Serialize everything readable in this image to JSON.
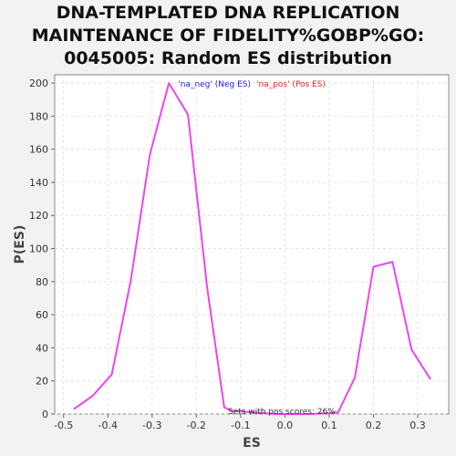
{
  "chart_data": {
    "type": "line",
    "title_lines": [
      "DNA-TEMPLATED DNA REPLICATION",
      "MAINTENANCE OF FIDELITY%GOBP%GO:",
      "0045005: Random ES distribution"
    ],
    "xlabel": "ES",
    "ylabel": "P(ES)",
    "xlim": [
      -0.52,
      0.37
    ],
    "ylim": [
      0,
      205
    ],
    "x_ticks": [
      -0.5,
      -0.4,
      -0.3,
      -0.2,
      -0.1,
      0.0,
      0.1,
      0.2,
      0.3
    ],
    "x_tick_labels": [
      "-0.5",
      "-0.4",
      "-0.3",
      "-0.2",
      "-0.1",
      "0.0",
      "0.1",
      "0.2",
      "0.3"
    ],
    "y_ticks": [
      0,
      20,
      40,
      60,
      80,
      100,
      120,
      140,
      160,
      180,
      200
    ],
    "y_tick_labels": [
      "0",
      "20",
      "40",
      "60",
      "80",
      "100",
      "120",
      "140",
      "160",
      "180",
      "200"
    ],
    "grid": true,
    "legend": [
      {
        "label": "'na_neg' (Neg ES)",
        "color": "#2222ee"
      },
      {
        "label": "'na_pos' (Pos ES)",
        "color": "#ee2222"
      }
    ],
    "annotation": "Sets with pos scores: 26%",
    "series": [
      {
        "color": "#ee44ee",
        "x": [
          -0.477,
          -0.434,
          -0.391,
          -0.348,
          -0.305,
          -0.262,
          -0.219,
          -0.176,
          -0.137,
          -0.12,
          -0.02,
          0.06,
          0.12,
          0.158,
          0.2,
          0.243,
          0.286,
          0.329
        ],
        "y": [
          3,
          11,
          24,
          81,
          157,
          200,
          181,
          77,
          4,
          2,
          0,
          0,
          1,
          22,
          89,
          92,
          39,
          21
        ]
      }
    ]
  }
}
